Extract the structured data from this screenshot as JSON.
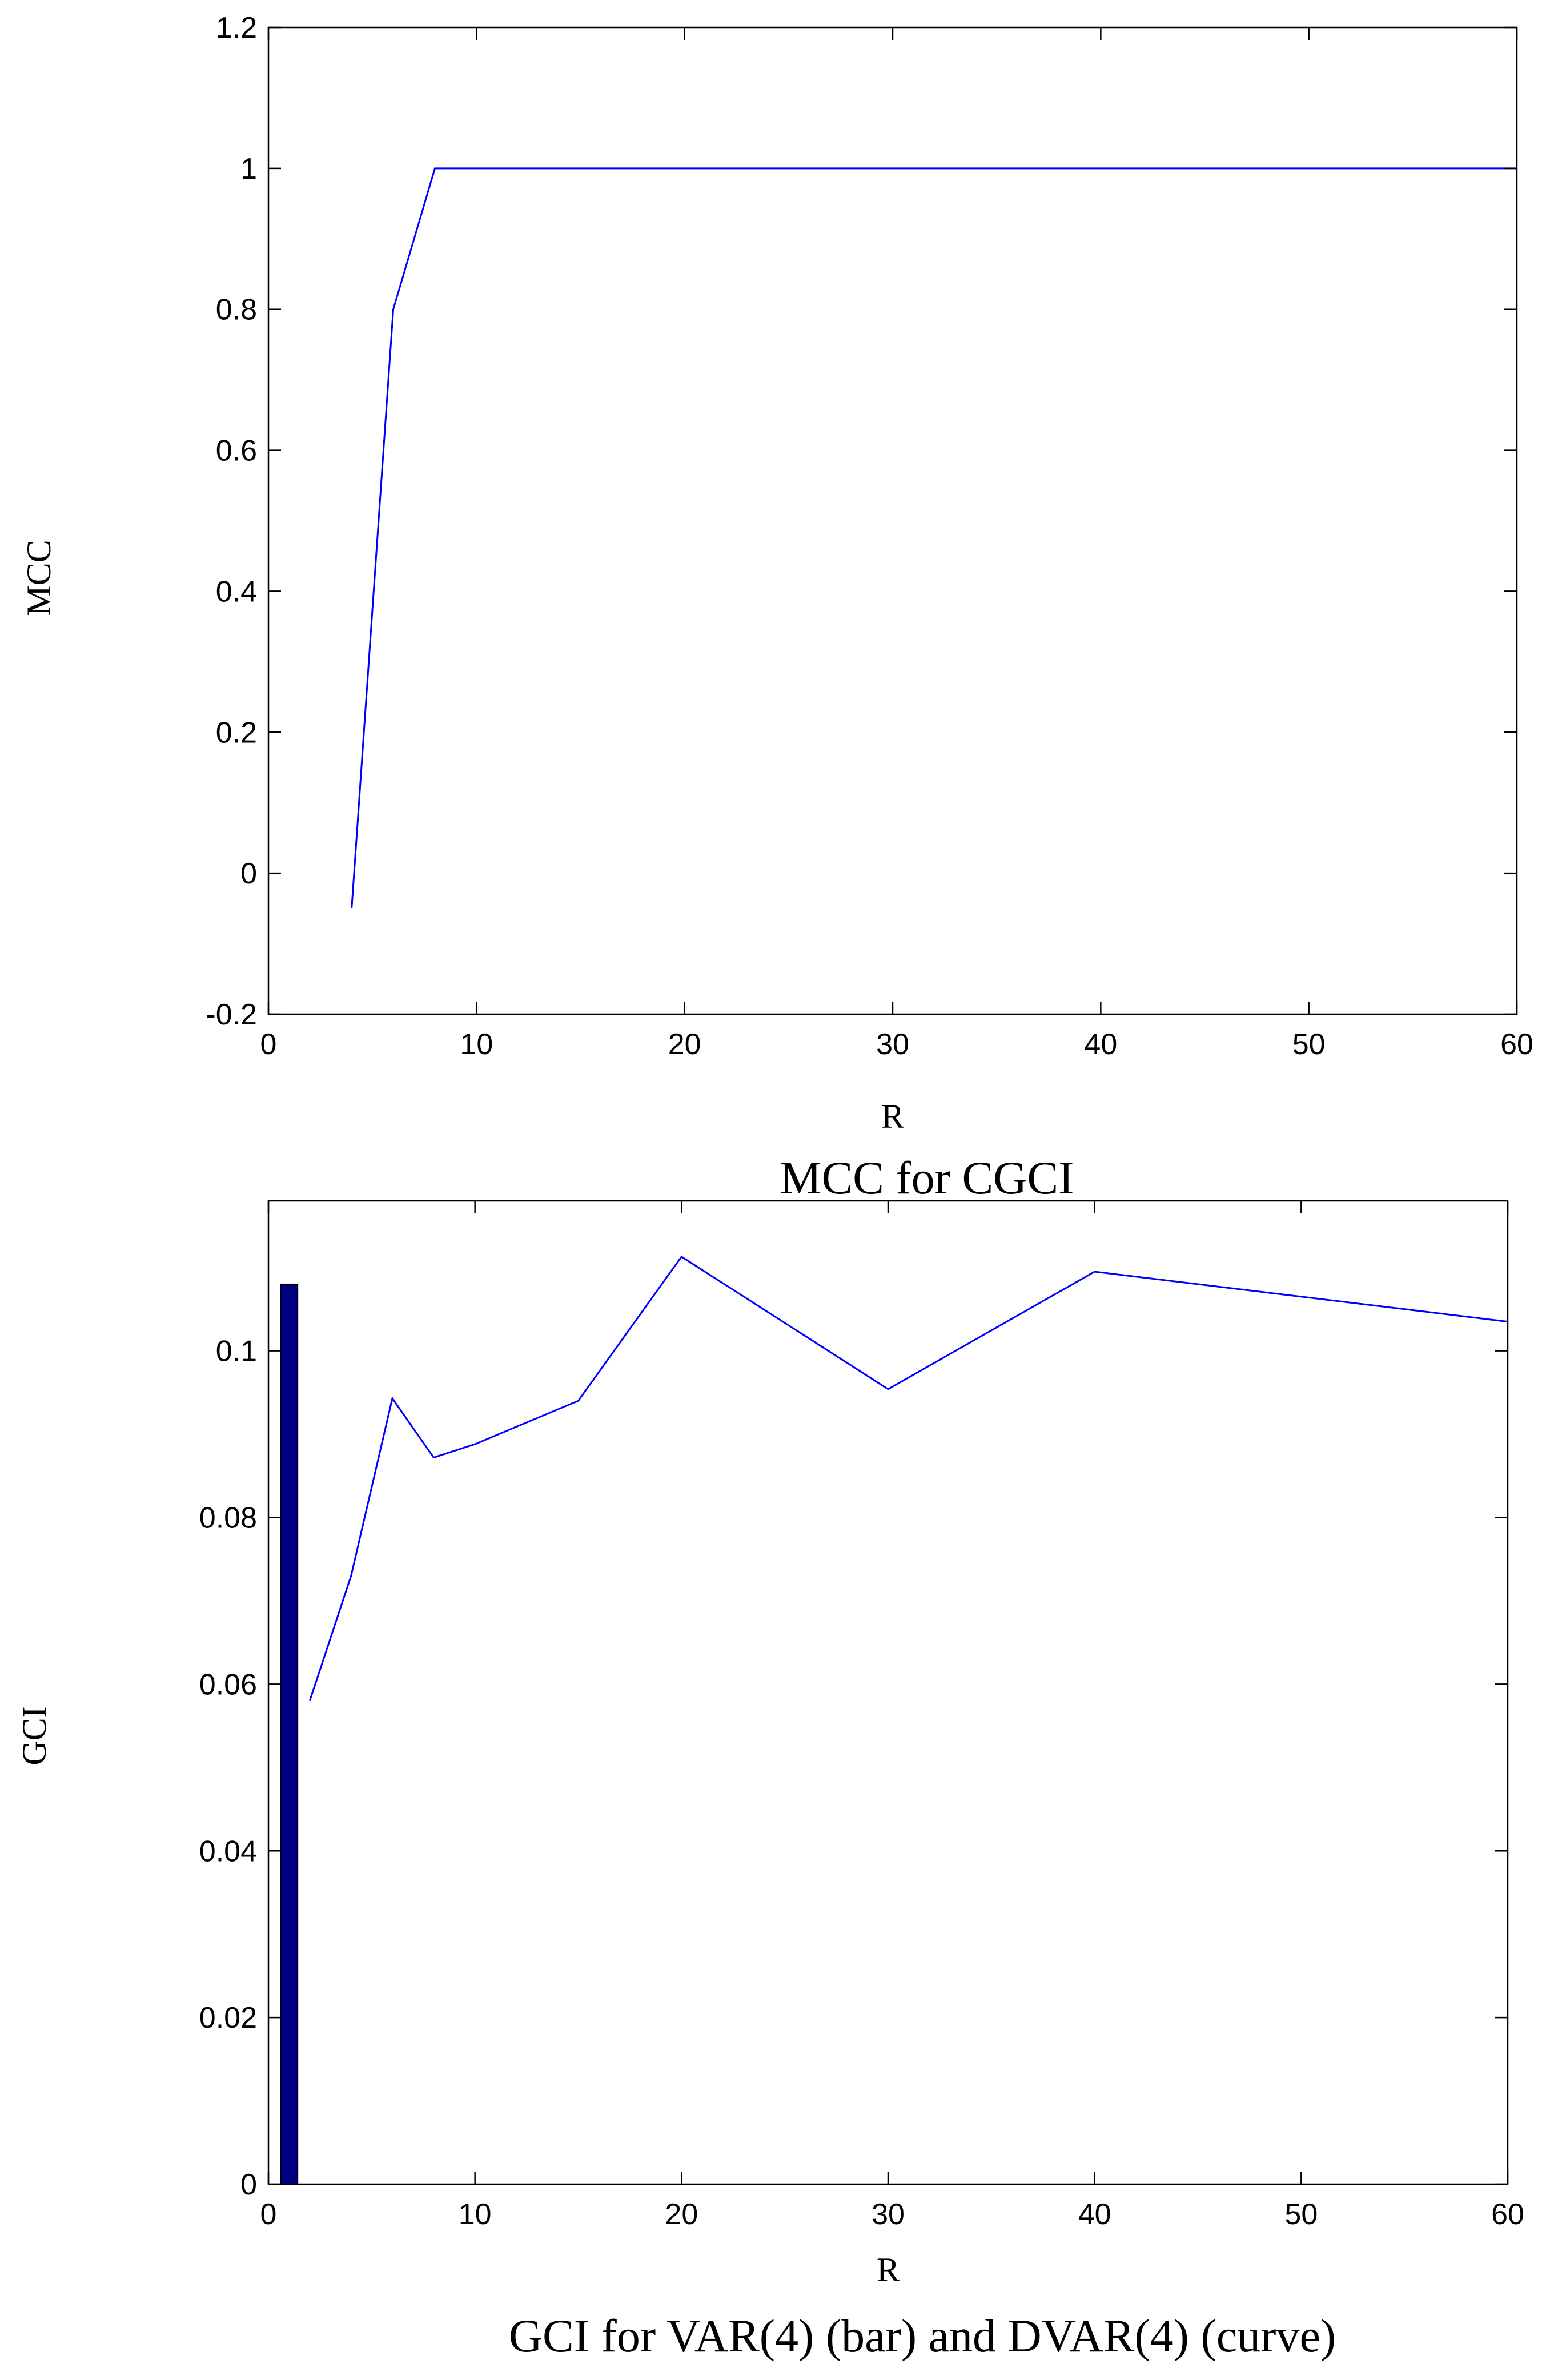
{
  "chart_data": [
    {
      "type": "line",
      "caption": "MCC for CGCI",
      "xlabel": "R",
      "ylabel": "MCC",
      "xlim": [
        0,
        60
      ],
      "ylim": [
        -0.2,
        1.2
      ],
      "xticks": [
        "0",
        "10",
        "20",
        "30",
        "40",
        "50",
        "60"
      ],
      "yticks": [
        "-0.2",
        "0",
        "0.2",
        "0.4",
        "0.6",
        "0.8",
        "1",
        "1.2"
      ],
      "series": [
        {
          "color": "#0000ff",
          "x": [
            4,
            6,
            8,
            10,
            15,
            20,
            30,
            40,
            60
          ],
          "y": [
            -0.05,
            0.8,
            1,
            1,
            1,
            1,
            1,
            1,
            1
          ]
        }
      ],
      "grid": false
    },
    {
      "type": "bar+line",
      "caption": "GCI for VAR(4) (bar) and DVAR(4) (curve)",
      "xlabel": "R",
      "ylabel": "GCI",
      "xlim": [
        0,
        60
      ],
      "ylim": [
        0,
        0.118
      ],
      "xticks": [
        "0",
        "10",
        "20",
        "30",
        "40",
        "50",
        "60"
      ],
      "yticks": [
        "0",
        "0.02",
        "0.04",
        "0.06",
        "0.08",
        "0.1"
      ],
      "bars": [
        {
          "x": 1,
          "value": 0.108,
          "color": "#000080"
        }
      ],
      "series": [
        {
          "color": "#0000ff",
          "x": [
            2,
            4,
            6,
            8,
            10,
            15,
            20,
            30,
            40,
            60
          ],
          "y": [
            0.058,
            0.073,
            0.0943,
            0.0872,
            0.0888,
            0.094,
            0.1113,
            0.0954,
            0.1095,
            0.1035
          ]
        }
      ],
      "grid": false
    }
  ]
}
